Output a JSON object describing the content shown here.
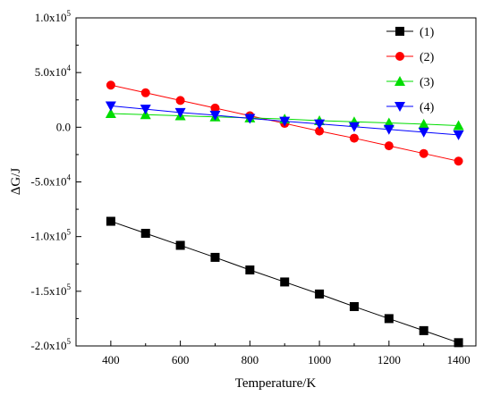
{
  "chart_data": {
    "type": "line",
    "title": "",
    "xlabel": "Temperature/K",
    "ylabel": "ΔG/J",
    "xlim": [
      300,
      1450
    ],
    "ylim": [
      -200000,
      100000
    ],
    "x": [
      400,
      500,
      600,
      700,
      800,
      900,
      1000,
      1100,
      1200,
      1300,
      1400
    ],
    "x_ticks": [
      400,
      600,
      800,
      1000,
      1200,
      1400
    ],
    "x_tick_labels": [
      "400",
      "600",
      "800",
      "1000",
      "1200",
      "1400"
    ],
    "y_ticks": [
      -200000,
      -150000,
      -100000,
      -50000,
      0,
      50000,
      100000
    ],
    "y_tick_labels": [
      {
        "base": "-2.0x10",
        "exp": "5"
      },
      {
        "base": "-1.5x10",
        "exp": "5"
      },
      {
        "base": "-1.0x10",
        "exp": "5"
      },
      {
        "base": "-5.0x10",
        "exp": "4"
      },
      {
        "base": "0.0",
        "exp": ""
      },
      {
        "base": "5.0x10",
        "exp": "4"
      },
      {
        "base": "1.0x10",
        "exp": "5"
      }
    ],
    "grid": false,
    "legend_position": "top-right",
    "series": [
      {
        "name": "(1)",
        "color": "#000000",
        "marker": "square",
        "values": [
          -86000,
          -97000,
          -108000,
          -119000,
          -130500,
          -141500,
          -152500,
          -164000,
          -175000,
          -186000,
          -197000
        ]
      },
      {
        "name": "(2)",
        "color": "#ff0000",
        "marker": "circle",
        "values": [
          38500,
          31500,
          24500,
          17500,
          10500,
          3500,
          -3500,
          -10000,
          -17000,
          -24000,
          -31000
        ]
      },
      {
        "name": "(3)",
        "color": "#00dd00",
        "marker": "triangle-up",
        "values": [
          12500,
          11500,
          10500,
          9500,
          8500,
          7500,
          6000,
          5000,
          4000,
          2800,
          1500
        ]
      },
      {
        "name": "(4)",
        "color": "#0000ff",
        "marker": "triangle-down",
        "values": [
          19500,
          16500,
          13500,
          11000,
          8000,
          5500,
          3000,
          500,
          -2000,
          -4500,
          -7000
        ]
      }
    ]
  }
}
